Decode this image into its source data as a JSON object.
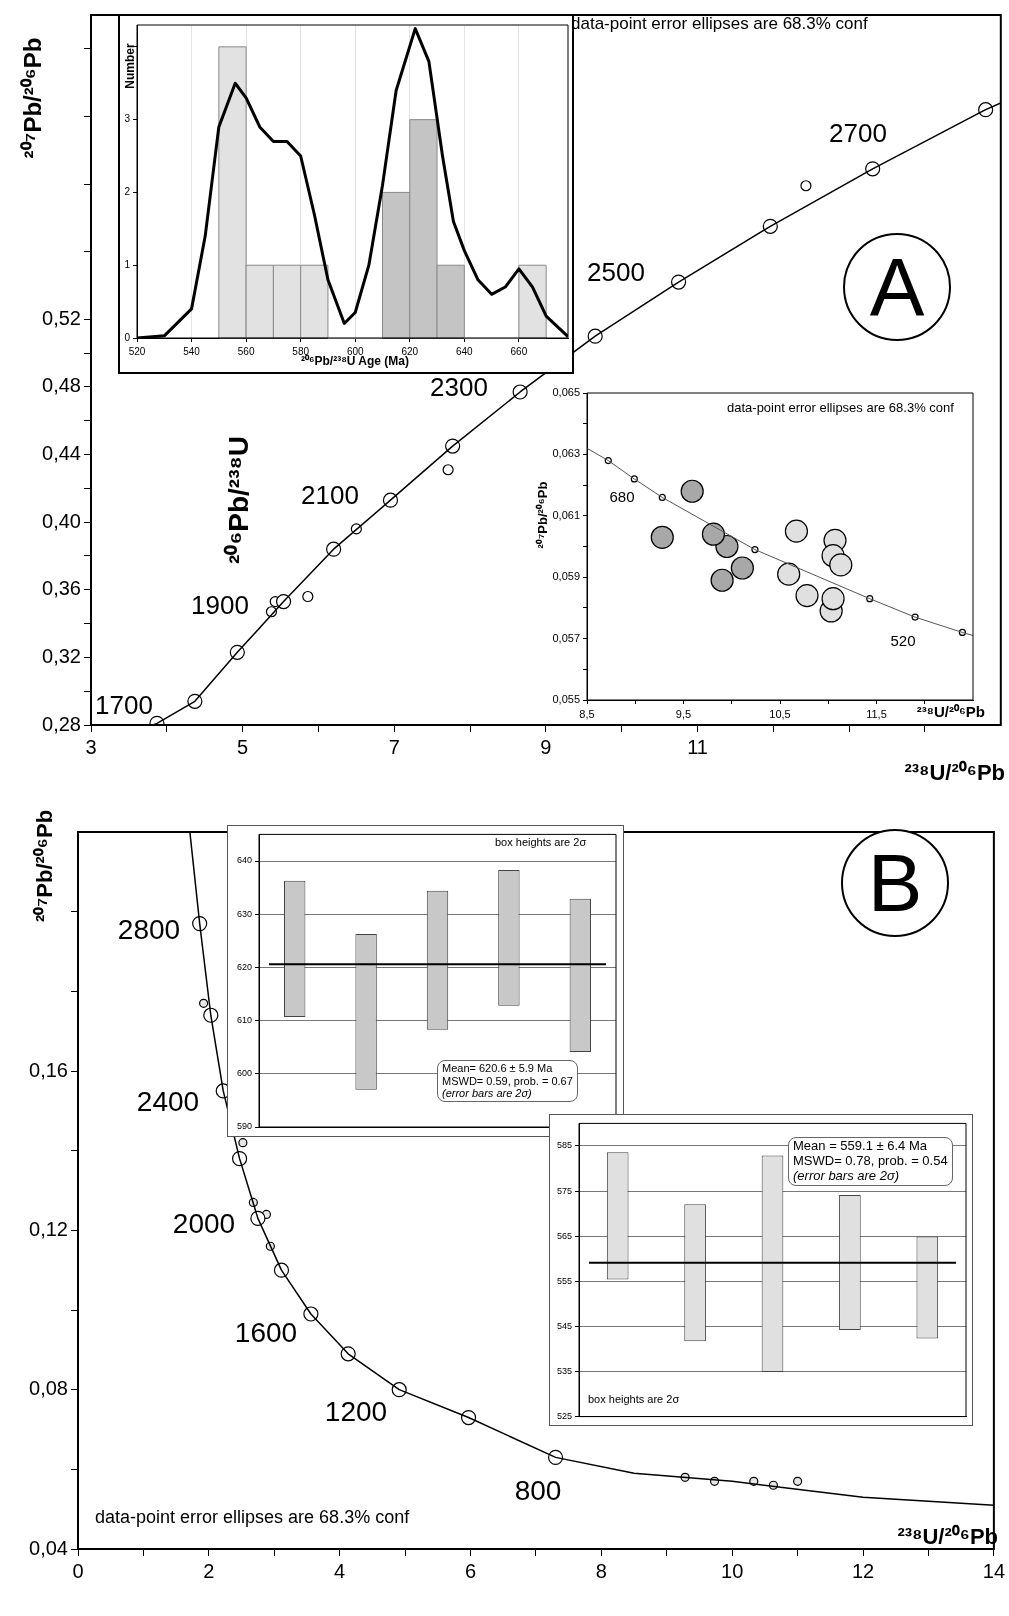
{
  "chart_data": [
    {
      "type": "line",
      "xlabel": "²³⁸U/²⁰⁶Pb",
      "ylabel": "²⁰⁶Pb/²³⁸U",
      "xlim": [
        3,
        15
      ],
      "ylim": [
        0.28,
        0.7
      ],
      "xticks": [
        3,
        {
          "value": 4,
          "label": null
        },
        5,
        {
          "value": 6,
          "label": null
        },
        7,
        {
          "value": 8,
          "label": null
        },
        9,
        {
          "value": 10,
          "label": null
        },
        11,
        {
          "value": 12,
          "label": null
        },
        {
          "value": 13,
          "label": null
        },
        {
          "value": 14,
          "label": null
        }
      ],
      "yticks": [
        {
          "value": 0.28,
          "label": "0,28"
        },
        {
          "value": 0.3,
          "label": null
        },
        {
          "value": 0.32,
          "label": "0,32"
        },
        {
          "value": 0.34,
          "label": null
        },
        {
          "value": 0.36,
          "label": "0,36"
        },
        {
          "value": 0.38,
          "label": null
        },
        {
          "value": 0.4,
          "label": "0,40"
        },
        {
          "value": 0.42,
          "label": null
        },
        {
          "value": 0.44,
          "label": "0,44"
        },
        {
          "value": 0.46,
          "label": null
        },
        {
          "value": 0.48,
          "label": "0,48"
        },
        {
          "value": 0.5,
          "label": null
        },
        {
          "value": 0.52,
          "label": "0,52"
        },
        {
          "value": 0.56,
          "label": null
        },
        {
          "value": 0.6,
          "label": null
        },
        {
          "value": 0.64,
          "label": null
        },
        {
          "value": 0.68,
          "label": null
        }
      ],
      "series": [
        {
          "type": "line",
          "color": "#000000",
          "marker": "none",
          "x": [
            3.82,
            3.87,
            4.37,
            4.93,
            5.54,
            6.2,
            6.95,
            7.77,
            8.66,
            9.65,
            10.75,
            11.96,
            13.31,
            14.8,
            15
          ],
          "values": [
            0.28,
            0.281,
            0.294,
            0.323,
            0.353,
            0.384,
            0.413,
            0.445,
            0.477,
            0.51,
            0.542,
            0.575,
            0.609,
            0.644,
            0.648
          ]
        },
        {
          "type": "scatter",
          "color": "#ffffff",
          "marker": "circle",
          "x": [
            3.87,
            4.37,
            4.93,
            5.54,
            6.2,
            6.95,
            7.77,
            8.66,
            9.65,
            10.75,
            11.96,
            13.31,
            14.8
          ],
          "values": [
            0.281,
            0.294,
            0.323,
            0.353,
            0.384,
            0.413,
            0.445,
            0.477,
            0.51,
            0.542,
            0.575,
            0.609,
            0.644
          ]
        },
        {
          "type": "scatter",
          "color": "#ffffff",
          "marker": "circle",
          "x": [
            5.38,
            5.43,
            5.86,
            6.5,
            7.71,
            12.43
          ],
          "values": [
            0.347,
            0.353,
            0.356,
            0.396,
            0.431,
            0.599
          ]
        }
      ],
      "annotations": [
        "1700",
        "1900",
        "2100",
        "2300",
        "2500",
        "2700",
        "data-point error ellipses are 68.3% conf",
        "A",
        "²⁰⁷Pb/²⁰⁶Pb"
      ]
    },
    {
      "type": "histogram",
      "xlabel": "²⁰⁶Pb/²³⁸U Age (Ma)",
      "ylabel": "Number",
      "xlim": [
        520,
        678
      ],
      "ylim": [
        0,
        4.3
      ],
      "xticks": [
        520,
        540,
        560,
        580,
        600,
        620,
        640,
        660
      ],
      "yticks": [
        0,
        1,
        2,
        3,
        {
          "value": 4,
          "label": null
        }
      ],
      "grid": "x",
      "bins": [
        550,
        560,
        570,
        580,
        590,
        600,
        610,
        620,
        630,
        640,
        650,
        660,
        670
      ],
      "values": [
        4,
        1,
        1,
        1,
        0,
        0,
        2,
        3,
        1,
        0,
        0,
        1
      ],
      "colors": [
        "#e2e2e2",
        "#e2e2e2",
        "#e2e2e2",
        "#e2e2e2",
        "#e2e2e2",
        "#e2e2e2",
        "#c4c4c4",
        "#c4c4c4",
        "#c4c4c4",
        "#e2e2e2",
        "#e2e2e2",
        "#e2e2e2"
      ],
      "series": [
        {
          "type": "line",
          "color": "#000000",
          "marker": "none",
          "x": [
            520,
            530,
            540,
            545,
            550,
            556,
            560,
            565,
            570,
            575,
            580,
            585,
            590,
            596,
            600,
            605,
            610,
            615,
            622,
            627,
            632,
            636,
            640,
            645,
            650,
            655,
            660,
            665,
            670,
            678
          ],
          "values": [
            0,
            0.03,
            0.4,
            1.4,
            2.9,
            3.5,
            3.3,
            2.9,
            2.7,
            2.7,
            2.5,
            1.7,
            0.8,
            0.2,
            0.35,
            1.0,
            2.1,
            3.4,
            4.25,
            3.8,
            2.5,
            1.6,
            1.2,
            0.8,
            0.6,
            0.7,
            0.95,
            0.7,
            0.3,
            0.02
          ]
        }
      ]
    },
    {
      "type": "line",
      "xlabel": "²³⁸U/²⁰⁶Pb",
      "ylabel": "²⁰⁷Pb/²⁰⁶Pb",
      "xlim": [
        8.5,
        12.5
      ],
      "ylim": [
        0.055,
        0.065
      ],
      "xticks": [
        {
          "value": 8.5,
          "label": "8,5"
        },
        {
          "value": 9,
          "label": null
        },
        {
          "value": 9.5,
          "label": "9,5"
        },
        {
          "value": 10,
          "label": null
        },
        {
          "value": 10.5,
          "label": "10,5"
        },
        {
          "value": 11,
          "label": null
        },
        {
          "value": 11.5,
          "label": "11,5"
        },
        {
          "value": 12,
          "label": null
        }
      ],
      "yticks": [
        {
          "value": 0.055,
          "label": "0,055"
        },
        {
          "value": 0.056,
          "label": null
        },
        {
          "value": 0.057,
          "label": "0,057"
        },
        {
          "value": 0.058,
          "label": null
        },
        {
          "value": 0.059,
          "label": "0,059"
        },
        {
          "value": 0.06,
          "label": null
        },
        {
          "value": 0.061,
          "label": "0,061"
        },
        {
          "value": 0.062,
          "label": null
        },
        {
          "value": 0.063,
          "label": "0,063"
        },
        {
          "value": 0.064,
          "label": null
        },
        {
          "value": 0.065,
          "label": "0,065"
        }
      ],
      "series": [
        {
          "type": "line",
          "color": "#555555",
          "marker": "none",
          "x": [
            8.5,
            8.72,
            8.99,
            9.28,
            10.24,
            11.43,
            11.9,
            12.39,
            12.5
          ],
          "values": [
            0.0632,
            0.0628,
            0.0622,
            0.0616,
            0.0599,
            0.0583,
            0.0577,
            0.0572,
            0.0571
          ]
        },
        {
          "type": "scatter",
          "color": "#ffffff",
          "marker": "circle",
          "x": [
            8.72,
            8.99,
            9.28,
            10.24,
            11.43,
            11.9,
            12.39
          ],
          "values": [
            0.0628,
            0.0622,
            0.0616,
            0.0599,
            0.0583,
            0.0577,
            0.0572
          ]
        },
        {
          "type": "scatter",
          "color": "#a8a8a8",
          "marker": "circle",
          "x": [
            9.28,
            9.59,
            9.95,
            9.9,
            10.11,
            9.81
          ],
          "values": [
            0.0603,
            0.0618,
            0.06,
            0.0589,
            0.0593,
            0.0604
          ]
        },
        {
          "type": "scatter",
          "color": "#e0e0e0",
          "marker": "circle",
          "x": [
            10.67,
            10.78,
            11.03,
            11.05,
            11.07,
            10.59,
            11.05,
            11.13
          ],
          "values": [
            0.0605,
            0.0584,
            0.0579,
            0.0583,
            0.0602,
            0.0591,
            0.0597,
            0.0594
          ]
        }
      ],
      "annotations": [
        "680",
        "520",
        "data-point error ellipses are 68.3% conf"
      ]
    },
    {
      "type": "line",
      "xlabel": "²³⁸U/²⁰⁶Pb",
      "ylabel": "²⁰⁷Pb/²⁰⁶Pb",
      "xlim": [
        0,
        14
      ],
      "ylim": [
        0.04,
        0.22
      ],
      "xticks": [
        0,
        {
          "value": 1,
          "label": null
        },
        2,
        {
          "value": 3,
          "label": null
        },
        4,
        {
          "value": 5,
          "label": null
        },
        6,
        {
          "value": 7,
          "label": null
        },
        8,
        {
          "value": 9,
          "label": null
        },
        10,
        {
          "value": 11,
          "label": null
        },
        12,
        {
          "value": 13,
          "label": null
        },
        14
      ],
      "yticks": [
        {
          "value": 0.04,
          "label": "0,04"
        },
        {
          "value": 0.06,
          "label": null
        },
        {
          "value": 0.08,
          "label": "0,08"
        },
        {
          "value": 0.1,
          "label": null
        },
        {
          "value": 0.12,
          "label": "0,12"
        },
        {
          "value": 0.14,
          "label": null
        },
        {
          "value": 0.16,
          "label": "0,16"
        },
        {
          "value": 0.18,
          "label": null
        },
        {
          "value": 0.2,
          "label": null
        }
      ],
      "series": [
        {
          "type": "line",
          "color": "#000000",
          "marker": "none",
          "x": [
            1.71,
            1.86,
            2.03,
            2.22,
            2.47,
            2.75,
            3.11,
            3.56,
            4.13,
            4.91,
            5.97,
            7.3,
            8.5,
            10,
            12,
            14
          ],
          "values": [
            0.22,
            0.197,
            0.174,
            0.155,
            0.138,
            0.123,
            0.11,
            0.099,
            0.089,
            0.08,
            0.073,
            0.063,
            0.059,
            0.057,
            0.053,
            0.051
          ]
        },
        {
          "type": "scatter",
          "color": "#ffffff",
          "marker": "circle",
          "x": [
            1.86,
            2.03,
            2.22,
            2.47,
            2.75,
            3.11,
            3.56,
            4.13,
            4.91,
            5.97,
            7.3
          ],
          "values": [
            0.197,
            0.174,
            0.155,
            0.138,
            0.123,
            0.11,
            0.099,
            0.089,
            0.08,
            0.073,
            0.063
          ]
        },
        {
          "type": "scatter",
          "color": "#e6e6e6",
          "marker": "circle",
          "x": [
            1.92,
            2.52,
            2.68,
            2.88,
            2.94,
            9.28,
            9.73,
            10.33,
            10.63,
            11.0
          ],
          "values": [
            0.177,
            0.142,
            0.127,
            0.124,
            0.116,
            0.058,
            0.057,
            0.057,
            0.056,
            0.057
          ]
        }
      ],
      "annotations": [
        "2800",
        "2400",
        "2000",
        "1600",
        "1200",
        "800",
        "data-point error ellipses are 68.3% conf",
        "B"
      ]
    },
    {
      "type": "bar",
      "categories": [
        null,
        null,
        null,
        null,
        null
      ],
      "values": [
        25.6,
        29.3,
        26.1,
        25.5,
        28.8
      ],
      "base": [
        610.7,
        597.0,
        608.3,
        612.8,
        604.1
      ],
      "color": "#c8c8c8",
      "ylim": [
        590,
        645
      ],
      "yticks": [
        590,
        600,
        610,
        620,
        630,
        640
      ],
      "grid": "y",
      "ref_lines": [
        {
          "axis": "y",
          "value": 620.6,
          "color": "#000000"
        }
      ],
      "annotations": [
        "box heights are 2σ",
        "Mean= 620.6 ± 5.9 Ma",
        "MSWD= 0.59, prob. = 0.67",
        "(error bars are 2σ)"
      ]
    },
    {
      "type": "bar",
      "categories": [
        null,
        null,
        null,
        null,
        null
      ],
      "values": [
        28.2,
        30.4,
        48.0,
        29.9,
        22.6
      ],
      "base": [
        555.4,
        541.7,
        534.9,
        544.2,
        542.3
      ],
      "color": "#e0e0e0",
      "ylim": [
        525,
        590
      ],
      "yticks": [
        525,
        535,
        545,
        555,
        565,
        575,
        585
      ],
      "grid": "y",
      "ref_lines": [
        {
          "axis": "y",
          "value": 559.1,
          "color": "#000000"
        }
      ],
      "annotations": [
        "Mean = 559.1 ± 6.4 Ma",
        "MSWD= 0.78, prob. = 0.54",
        "(error bars are 2σ)",
        "box heights are 2σ"
      ]
    }
  ]
}
